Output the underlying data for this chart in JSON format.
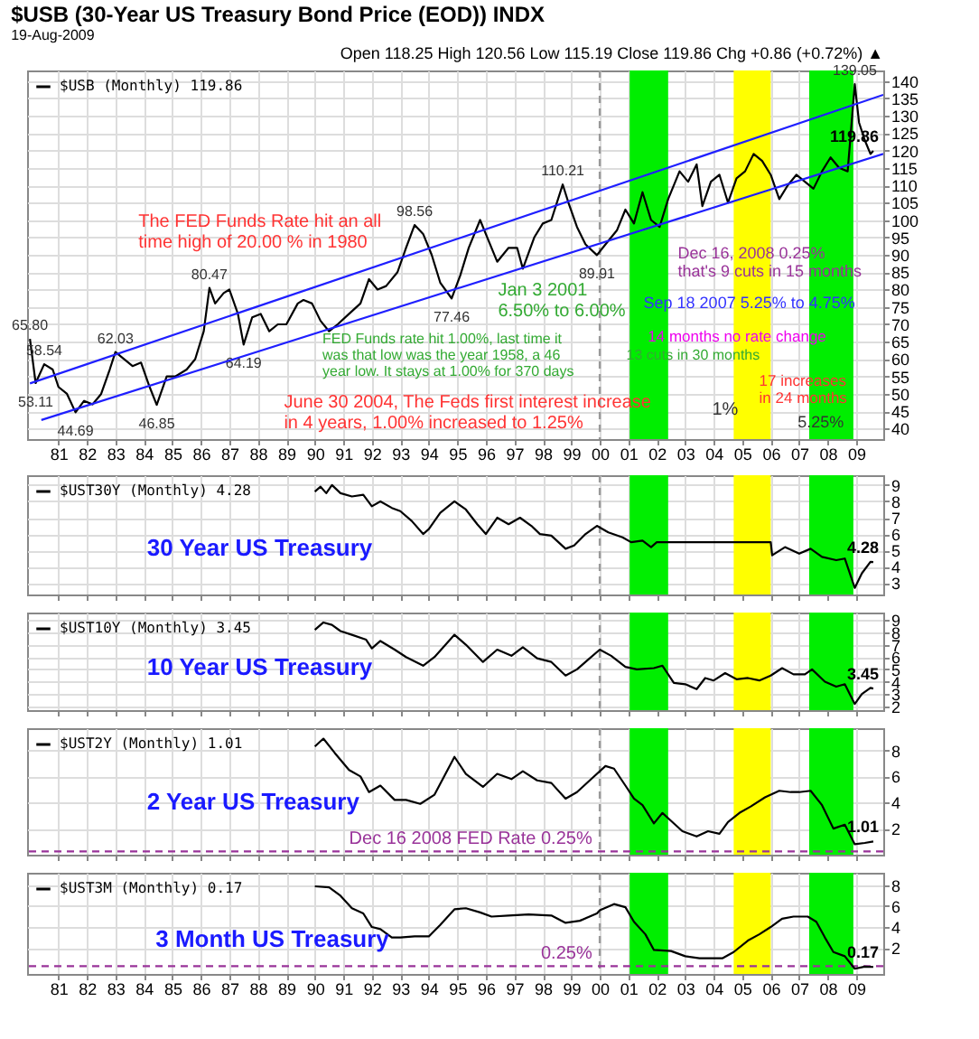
{
  "chart_data": [
    {
      "type": "line",
      "title": "$USB (30-Year US Treasury Bond Price (EOD)) INDX",
      "subtitle": "19-Aug-2009",
      "xlim": [
        1979.9,
        2009.95
      ],
      "xticks": [
        {
          "value": 1981,
          "label": "81"
        },
        {
          "value": 1982,
          "label": "82"
        },
        {
          "value": 1983,
          "label": "83"
        },
        {
          "value": 1984,
          "label": "84"
        },
        {
          "value": 1985,
          "label": "85"
        },
        {
          "value": 1986,
          "label": "86"
        },
        {
          "value": 1987,
          "label": "87"
        },
        {
          "value": 1988,
          "label": "88"
        },
        {
          "value": 1989,
          "label": "89"
        },
        {
          "value": 1990,
          "label": "90"
        },
        {
          "value": 1991,
          "label": "91"
        },
        {
          "value": 1992,
          "label": "92"
        },
        {
          "value": 1993,
          "label": "93"
        },
        {
          "value": 1994,
          "label": "94"
        },
        {
          "value": 1995,
          "label": "95"
        },
        {
          "value": 1996,
          "label": "96"
        },
        {
          "value": 1997,
          "label": "97"
        },
        {
          "value": 1998,
          "label": "98"
        },
        {
          "value": 1999,
          "label": "99"
        },
        {
          "value": 2000,
          "label": "00"
        },
        {
          "value": 2001,
          "label": "01"
        },
        {
          "value": 2002,
          "label": "02"
        },
        {
          "value": 2003,
          "label": "03"
        },
        {
          "value": 2004,
          "label": "04"
        },
        {
          "value": 2005,
          "label": "05"
        },
        {
          "value": 2006,
          "label": "06"
        },
        {
          "value": 2007,
          "label": "07"
        },
        {
          "value": 2008,
          "label": "08"
        },
        {
          "value": 2009,
          "label": "09"
        }
      ],
      "ylim": [
        37,
        143
      ],
      "yticks": [
        40,
        45,
        50,
        55,
        60,
        65,
        70,
        75,
        80,
        85,
        90,
        95,
        100,
        105,
        110,
        115,
        120,
        125,
        130,
        135,
        140
      ],
      "grid": true,
      "legend": "top left",
      "series": [
        {
          "name": "$USB (Monthly) 119.86",
          "color": "#000000",
          "x": [
            1980.0,
            1980.2,
            1980.5,
            1980.8,
            1981.0,
            1981.3,
            1981.6,
            1981.9,
            1982.2,
            1982.5,
            1982.8,
            1983.0,
            1983.3,
            1983.6,
            1983.9,
            1984.2,
            1984.45,
            1984.8,
            1985.1,
            1985.5,
            1985.8,
            1986.1,
            1986.3,
            1986.5,
            1986.8,
            1987.0,
            1987.3,
            1987.5,
            1987.8,
            1988.1,
            1988.4,
            1988.7,
            1989.0,
            1989.4,
            1989.6,
            1989.9,
            1990.2,
            1990.5,
            1990.8,
            1991.2,
            1991.6,
            1991.9,
            1992.2,
            1992.5,
            1992.9,
            1993.2,
            1993.5,
            1993.8,
            1994.1,
            1994.4,
            1994.8,
            1995.1,
            1995.4,
            1995.8,
            1996.1,
            1996.4,
            1996.8,
            1997.1,
            1997.3,
            1997.7,
            1998.0,
            1998.3,
            1998.7,
            1998.9,
            1999.2,
            1999.5,
            1999.9,
            2000.2,
            2000.6,
            2000.9,
            2001.2,
            2001.5,
            2001.8,
            2002.1,
            2002.4,
            2002.8,
            2003.1,
            2003.4,
            2003.6,
            2003.9,
            2004.2,
            2004.5,
            2004.8,
            2005.1,
            2005.4,
            2005.7,
            2006.0,
            2006.3,
            2006.6,
            2006.9,
            2007.2,
            2007.5,
            2007.8,
            2008.1,
            2008.4,
            2008.7,
            2008.95,
            2009.1,
            2009.3,
            2009.5,
            2009.6
          ],
          "values": [
            65.8,
            53.11,
            58.54,
            57,
            52,
            50,
            44.69,
            48,
            47,
            50,
            57,
            62.03,
            60,
            58,
            59,
            52,
            46.85,
            55,
            55,
            57,
            60,
            68,
            80.47,
            76,
            79,
            80,
            73,
            64.19,
            72,
            73,
            68,
            70,
            70,
            76,
            77,
            76,
            71,
            68,
            70,
            73,
            76,
            83,
            80,
            81,
            85,
            92,
            98.56,
            96,
            90,
            82,
            77.46,
            84,
            92,
            100,
            94,
            88,
            92,
            92,
            86,
            95,
            99,
            100,
            110.21,
            105,
            98,
            93,
            89.91,
            93,
            97,
            103,
            99,
            108,
            100,
            98,
            106,
            114,
            111,
            116,
            104,
            111,
            113,
            105,
            112,
            114,
            119,
            117,
            113,
            106,
            110,
            113,
            111,
            109,
            114,
            118,
            115,
            114,
            139.05,
            128,
            123,
            119,
            119.86
          ],
          "value_labels": [
            "65.80",
            "53.11",
            "58.54",
            null,
            null,
            null,
            "44.69",
            null,
            null,
            null,
            null,
            "62.03",
            null,
            null,
            null,
            null,
            "46.85",
            null,
            null,
            null,
            null,
            null,
            "80.47",
            null,
            null,
            null,
            null,
            "64.19",
            null,
            null,
            null,
            null,
            null,
            null,
            null,
            null,
            null,
            null,
            null,
            null,
            null,
            null,
            null,
            null,
            null,
            null,
            "98.56",
            null,
            null,
            null,
            "77.46",
            null,
            null,
            null,
            null,
            null,
            null,
            null,
            null,
            null,
            null,
            null,
            "110.21",
            null,
            null,
            null,
            "89.91",
            null,
            null,
            null,
            null,
            null,
            null,
            null,
            null,
            null,
            null,
            null,
            null,
            null,
            null,
            null,
            null,
            null,
            null,
            null,
            null,
            null,
            null,
            null,
            null,
            null,
            null,
            null,
            null,
            null,
            "139.05",
            null,
            null,
            null,
            "119.86"
          ]
        },
        {
          "color": "#1f1fff",
          "x": [
            1980.4,
            2009.95
          ],
          "values": [
            42.5,
            119
          ]
        },
        {
          "color": "#1f1fff",
          "x": [
            1980.0,
            2009.95
          ],
          "values": [
            53,
            136
          ]
        }
      ],
      "bands": [
        {
          "axis": "x",
          "from": 2001.05,
          "to": 2002.4,
          "color": "#00ee00"
        },
        {
          "axis": "x",
          "from": 2004.7,
          "to": 2006.0,
          "color": "#ffff00"
        },
        {
          "axis": "x",
          "from": 2007.35,
          "to": 2008.9,
          "color": "#00ee00"
        }
      ],
      "ref_lines": [
        {
          "axis": "x",
          "value": 2000,
          "color": "#999999",
          "line_style": "dashed"
        }
      ],
      "annotations": [
        "Open 118.25 High 120.56 Low 115.19 Close 119.86 Chg +0.86 (+0.72%) ▲",
        "The FED Funds Rate hit an all\ntime high of 20.00 % in 1980",
        "Jan 3 2001\n6.50% to 6.00%",
        "Dec 16, 2008  0.25%\nthat's 9 cuts in 15 months",
        "Sep 18 2007 5.25% to 4.75%",
        "14 months no rate change",
        "FED Funds rate hit 1.00%, last time it\nwas that low was the year 1958, a 46\nyear low. It stays at 1.00% for 370 days",
        "13 cuts in 30 months",
        "17 increases\nin 24 months",
        "June 30 2004, The Feds first interest increase\nin 4 years, 1.00% increased to 1.25%",
        "1%",
        "5.25%"
      ]
    },
    {
      "type": "line",
      "xlim": [
        1979.9,
        2009.95
      ],
      "tick_labels": "y",
      "xticks": [
        1981,
        1982,
        1983,
        1984,
        1985,
        1986,
        1987,
        1988,
        1989,
        1990,
        1991,
        1992,
        1993,
        1994,
        1995,
        1996,
        1997,
        1998,
        1999,
        2000,
        2001,
        2002,
        2003,
        2004,
        2005,
        2006,
        2007,
        2008,
        2009
      ],
      "ylim": [
        2.3,
        9.6
      ],
      "yticks": [
        3,
        4,
        5,
        6,
        7,
        8,
        9
      ],
      "grid": true,
      "legend": "top left",
      "series": [
        {
          "name": "$UST30Y (Monthly) 4.28",
          "color": "#000000",
          "x": [
            1990.0,
            1990.2,
            1990.4,
            1990.6,
            1990.9,
            1991.3,
            1991.7,
            1992.0,
            1992.3,
            1992.7,
            1993.0,
            1993.4,
            1993.8,
            1994.0,
            1994.4,
            1994.9,
            1995.3,
            1995.7,
            1996.0,
            1996.4,
            1996.8,
            1997.2,
            1997.6,
            1997.9,
            1998.3,
            1998.8,
            1999.1,
            1999.5,
            1999.9,
            2000.3,
            2000.8,
            2001.1,
            2001.5,
            2001.8,
            2002.0,
            2002.2,
            2006.0,
            2006.05,
            2006.5,
            2007.0,
            2007.4,
            2007.8,
            2008.3,
            2008.6,
            2008.95,
            2009.2,
            2009.5,
            2009.6
          ],
          "values": [
            8.6,
            8.9,
            8.5,
            9.0,
            8.5,
            8.3,
            8.4,
            7.7,
            8.0,
            7.6,
            7.4,
            6.8,
            6.0,
            6.3,
            7.3,
            8.0,
            7.5,
            6.6,
            6.0,
            7.0,
            6.6,
            7.0,
            6.5,
            6.0,
            5.9,
            5.1,
            5.3,
            6.0,
            6.5,
            6.1,
            5.8,
            5.5,
            5.6,
            5.2,
            5.5,
            5.5,
            5.5,
            4.7,
            5.2,
            4.8,
            5.1,
            4.6,
            4.4,
            4.5,
            2.7,
            3.6,
            4.3,
            4.28
          ],
          "value_labels": [
            null,
            null,
            null,
            null,
            null,
            null,
            null,
            null,
            null,
            null,
            null,
            null,
            null,
            null,
            null,
            null,
            null,
            null,
            null,
            null,
            null,
            null,
            null,
            null,
            null,
            null,
            null,
            null,
            null,
            null,
            null,
            null,
            null,
            null,
            null,
            null,
            null,
            null,
            null,
            null,
            null,
            null,
            null,
            null,
            null,
            null,
            null,
            "4.28"
          ]
        }
      ],
      "bands": [
        {
          "axis": "x",
          "from": 2001.05,
          "to": 2002.4,
          "color": "#00ee00"
        },
        {
          "axis": "x",
          "from": 2004.7,
          "to": 2006.0,
          "color": "#ffff00"
        },
        {
          "axis": "x",
          "from": 2007.35,
          "to": 2008.9,
          "color": "#00ee00"
        }
      ],
      "ref_lines": [
        {
          "axis": "x",
          "value": 2000,
          "color": "#999999",
          "line_style": "dashed"
        }
      ],
      "annotations": [
        "30 Year US Treasury"
      ]
    },
    {
      "type": "line",
      "xlim": [
        1979.9,
        2009.95
      ],
      "tick_labels": "y",
      "xticks": [
        1981,
        1982,
        1983,
        1984,
        1985,
        1986,
        1987,
        1988,
        1989,
        1990,
        1991,
        1992,
        1993,
        1994,
        1995,
        1996,
        1997,
        1998,
        1999,
        2000,
        2001,
        2002,
        2003,
        2004,
        2005,
        2006,
        2007,
        2008,
        2009
      ],
      "ylim": [
        1.7,
        9.6
      ],
      "yticks": [
        2,
        3,
        4,
        5,
        6,
        7,
        8,
        9
      ],
      "grid": true,
      "legend": "top left",
      "series": [
        {
          "name": "$UST10Y (Monthly) 3.45",
          "color": "#000000",
          "x": [
            1990.0,
            1990.3,
            1990.6,
            1990.9,
            1991.3,
            1991.8,
            1992.0,
            1992.3,
            1992.8,
            1993.2,
            1993.8,
            1994.2,
            1994.9,
            1995.3,
            1995.9,
            1996.4,
            1996.9,
            1997.3,
            1997.8,
            1998.3,
            1998.8,
            1999.2,
            1999.6,
            2000.0,
            2000.4,
            2000.9,
            2001.3,
            2001.9,
            2002.2,
            2002.6,
            2003.0,
            2003.4,
            2003.7,
            2004.0,
            2004.4,
            2004.8,
            2005.2,
            2005.6,
            2006.0,
            2006.4,
            2006.8,
            2007.2,
            2007.45,
            2007.9,
            2008.3,
            2008.6,
            2008.95,
            2009.2,
            2009.5,
            2009.6
          ],
          "values": [
            8.2,
            8.8,
            8.6,
            8.1,
            7.8,
            7.4,
            6.7,
            7.3,
            6.6,
            6.0,
            5.3,
            6.0,
            7.8,
            7.0,
            5.6,
            6.6,
            6.1,
            6.8,
            5.9,
            5.6,
            4.5,
            5.0,
            5.8,
            6.6,
            6.1,
            5.2,
            5.0,
            5.1,
            5.3,
            3.9,
            3.8,
            3.4,
            4.3,
            4.1,
            4.7,
            4.2,
            4.3,
            4.1,
            4.5,
            5.1,
            4.6,
            4.6,
            5.0,
            4.0,
            3.6,
            3.8,
            2.2,
            3.0,
            3.5,
            3.45
          ],
          "value_labels": [
            null,
            null,
            null,
            null,
            null,
            null,
            null,
            null,
            null,
            null,
            null,
            null,
            null,
            null,
            null,
            null,
            null,
            null,
            null,
            null,
            null,
            null,
            null,
            null,
            null,
            null,
            null,
            null,
            null,
            null,
            null,
            null,
            null,
            null,
            null,
            null,
            null,
            null,
            null,
            null,
            null,
            null,
            null,
            null,
            null,
            null,
            null,
            null,
            null,
            "3.45"
          ]
        }
      ],
      "bands": [
        {
          "axis": "x",
          "from": 2001.05,
          "to": 2002.4,
          "color": "#00ee00"
        },
        {
          "axis": "x",
          "from": 2004.7,
          "to": 2006.0,
          "color": "#ffff00"
        },
        {
          "axis": "x",
          "from": 2007.35,
          "to": 2008.9,
          "color": "#00ee00"
        }
      ],
      "ref_lines": [
        {
          "axis": "x",
          "value": 2000,
          "color": "#999999",
          "line_style": "dashed"
        }
      ],
      "annotations": [
        "10 Year US Treasury"
      ]
    },
    {
      "type": "line",
      "xlim": [
        1979.9,
        2009.95
      ],
      "tick_labels": "y",
      "xticks": [
        1981,
        1982,
        1983,
        1984,
        1985,
        1986,
        1987,
        1988,
        1989,
        1990,
        1991,
        1992,
        1993,
        1994,
        1995,
        1996,
        1997,
        1998,
        1999,
        2000,
        2001,
        2002,
        2003,
        2004,
        2005,
        2006,
        2007,
        2008,
        2009
      ],
      "ylim": [
        0,
        9.7
      ],
      "yticks": [
        2,
        4,
        6,
        8
      ],
      "grid": true,
      "legend": "top left",
      "series": [
        {
          "name": "$UST2Y (Monthly) 1.01",
          "color": "#000000",
          "x": [
            1990.0,
            1990.3,
            1990.7,
            1991.2,
            1991.6,
            1991.9,
            1992.3,
            1992.8,
            1993.2,
            1993.7,
            1994.2,
            1994.9,
            1995.3,
            1995.9,
            1996.4,
            1996.9,
            1997.3,
            1997.8,
            1998.3,
            1998.8,
            1999.2,
            1999.7,
            2000.2,
            2000.5,
            2000.9,
            2001.2,
            2001.5,
            2001.9,
            2002.2,
            2002.5,
            2002.9,
            2003.4,
            2003.8,
            2004.2,
            2004.5,
            2004.9,
            2005.3,
            2005.8,
            2006.3,
            2006.7,
            2007.0,
            2007.4,
            2007.8,
            2008.2,
            2008.6,
            2008.95,
            2009.3,
            2009.6
          ],
          "values": [
            8.3,
            8.9,
            7.8,
            6.5,
            6.0,
            4.8,
            5.3,
            4.2,
            4.2,
            3.9,
            4.6,
            7.5,
            6.2,
            5.2,
            6.2,
            5.8,
            6.4,
            5.7,
            5.5,
            4.3,
            4.8,
            5.8,
            6.8,
            6.6,
            5.3,
            4.3,
            3.8,
            2.4,
            3.2,
            2.6,
            1.8,
            1.4,
            1.8,
            1.6,
            2.5,
            3.2,
            3.7,
            4.4,
            4.9,
            4.8,
            4.8,
            4.9,
            3.8,
            2.0,
            2.3,
            0.8,
            0.9,
            1.01
          ],
          "value_labels": [
            null,
            null,
            null,
            null,
            null,
            null,
            null,
            null,
            null,
            null,
            null,
            null,
            null,
            null,
            null,
            null,
            null,
            null,
            null,
            null,
            null,
            null,
            null,
            null,
            null,
            null,
            null,
            null,
            null,
            null,
            null,
            null,
            null,
            null,
            null,
            null,
            null,
            null,
            null,
            null,
            null,
            null,
            null,
            null,
            null,
            null,
            null,
            "1.01"
          ]
        }
      ],
      "bands": [
        {
          "axis": "x",
          "from": 2001.05,
          "to": 2002.4,
          "color": "#00ee00"
        },
        {
          "axis": "x",
          "from": 2004.7,
          "to": 2006.0,
          "color": "#ffff00"
        },
        {
          "axis": "x",
          "from": 2007.35,
          "to": 2008.9,
          "color": "#00ee00"
        }
      ],
      "ref_lines": [
        {
          "axis": "x",
          "value": 2000,
          "color": "#999999",
          "line_style": "dashed"
        },
        {
          "axis": "y",
          "value": 0.25,
          "label": "Dec 16 2008 FED Rate 0.25%",
          "color": "#993399",
          "line_style": "dashed"
        }
      ],
      "annotations": [
        "2 Year US Treasury"
      ]
    },
    {
      "type": "line",
      "xlim": [
        1979.9,
        2009.95
      ],
      "xticks": [
        {
          "value": 1981,
          "label": "81"
        },
        {
          "value": 1982,
          "label": "82"
        },
        {
          "value": 1983,
          "label": "83"
        },
        {
          "value": 1984,
          "label": "84"
        },
        {
          "value": 1985,
          "label": "85"
        },
        {
          "value": 1986,
          "label": "86"
        },
        {
          "value": 1987,
          "label": "87"
        },
        {
          "value": 1988,
          "label": "88"
        },
        {
          "value": 1989,
          "label": "89"
        },
        {
          "value": 1990,
          "label": "90"
        },
        {
          "value": 1991,
          "label": "91"
        },
        {
          "value": 1992,
          "label": "92"
        },
        {
          "value": 1993,
          "label": "93"
        },
        {
          "value": 1994,
          "label": "94"
        },
        {
          "value": 1995,
          "label": "95"
        },
        {
          "value": 1996,
          "label": "96"
        },
        {
          "value": 1997,
          "label": "97"
        },
        {
          "value": 1998,
          "label": "98"
        },
        {
          "value": 1999,
          "label": "99"
        },
        {
          "value": 2000,
          "label": "00"
        },
        {
          "value": 2001,
          "label": "01"
        },
        {
          "value": 2002,
          "label": "02"
        },
        {
          "value": 2003,
          "label": "03"
        },
        {
          "value": 2004,
          "label": "04"
        },
        {
          "value": 2005,
          "label": "05"
        },
        {
          "value": 2006,
          "label": "06"
        },
        {
          "value": 2007,
          "label": "07"
        },
        {
          "value": 2008,
          "label": "08"
        },
        {
          "value": 2009,
          "label": "09"
        }
      ],
      "ylim": [
        -0.5,
        9.2
      ],
      "yticks": [
        2,
        4,
        6,
        8
      ],
      "grid": true,
      "legend": "top left",
      "series": [
        {
          "name": "$UST3M (Monthly) 0.17",
          "color": "#000000",
          "x": [
            1990.0,
            1990.5,
            1990.9,
            1991.3,
            1991.7,
            1992.0,
            1992.3,
            1992.7,
            1993.0,
            1993.5,
            1994.0,
            1994.4,
            1994.9,
            1995.3,
            1995.8,
            1996.2,
            1996.8,
            1997.5,
            1998.3,
            1998.8,
            1999.3,
            1999.9,
            2000.0,
            2000.5,
            2000.9,
            2001.2,
            2001.6,
            2001.9,
            2002.5,
            2003.0,
            2003.5,
            2004.3,
            2004.7,
            2005.2,
            2005.6,
            2006.0,
            2006.4,
            2006.8,
            2007.3,
            2007.6,
            2007.9,
            2008.2,
            2008.6,
            2008.95,
            2009.3,
            2009.6
          ],
          "values": [
            7.9,
            7.8,
            7.0,
            5.8,
            5.3,
            4.0,
            3.8,
            3.0,
            3.0,
            3.1,
            3.1,
            4.2,
            5.7,
            5.8,
            5.4,
            5.0,
            5.1,
            5.2,
            5.1,
            4.4,
            4.6,
            5.3,
            5.6,
            6.2,
            5.9,
            4.5,
            3.3,
            1.8,
            1.7,
            1.2,
            1.0,
            1.0,
            1.6,
            2.7,
            3.3,
            4.0,
            4.8,
            5.0,
            5.0,
            4.5,
            3.0,
            1.6,
            1.2,
            0.0,
            0.2,
            0.17
          ],
          "value_labels": [
            null,
            null,
            null,
            null,
            null,
            null,
            null,
            null,
            null,
            null,
            null,
            null,
            null,
            null,
            null,
            null,
            null,
            null,
            null,
            null,
            null,
            null,
            null,
            null,
            null,
            null,
            null,
            null,
            null,
            null,
            null,
            null,
            null,
            null,
            null,
            null,
            null,
            null,
            null,
            null,
            null,
            null,
            null,
            null,
            null,
            "0.17"
          ]
        }
      ],
      "bands": [
        {
          "axis": "x",
          "from": 2001.05,
          "to": 2002.4,
          "color": "#00ee00"
        },
        {
          "axis": "x",
          "from": 2004.7,
          "to": 2006.0,
          "color": "#ffff00"
        },
        {
          "axis": "x",
          "from": 2007.35,
          "to": 2008.9,
          "color": "#00ee00"
        }
      ],
      "ref_lines": [
        {
          "axis": "x",
          "value": 2000,
          "color": "#999999",
          "line_style": "dashed"
        },
        {
          "axis": "y",
          "value": 0.25,
          "label": "0.25%",
          "color": "#993399",
          "line_style": "dashed"
        }
      ],
      "annotations": [
        "3 Month US Treasury"
      ]
    }
  ]
}
